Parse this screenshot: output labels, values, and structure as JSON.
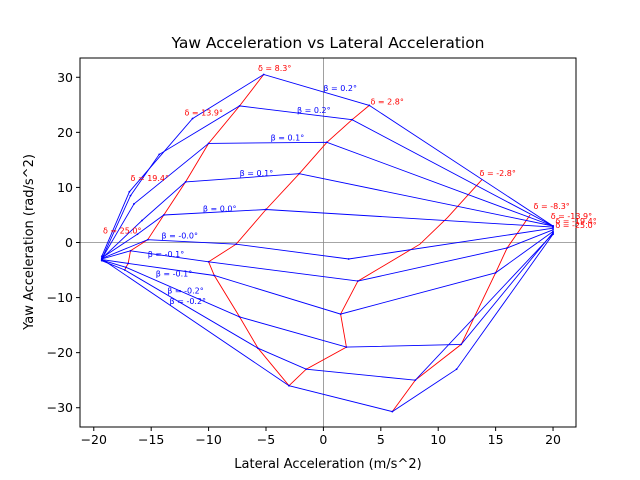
{
  "chart_data": {
    "type": "line",
    "title": "Yaw Acceleration vs Lateral Acceleration",
    "xlabel": "Lateral Acceleration (m/s^2)",
    "ylabel": "Yaw Acceleration (rad/s^2)",
    "xlim": [
      -21.2,
      22.0
    ],
    "ylim": [
      -33.5,
      33.5
    ],
    "xticks": [
      -20,
      -15,
      -10,
      -5,
      0,
      5,
      10,
      15,
      20
    ],
    "yticks": [
      -30,
      -20,
      -10,
      0,
      10,
      20,
      30
    ],
    "grid": false,
    "reference_lines": [
      "x=0",
      "y=0"
    ],
    "colors": {
      "beta_lines": "#0000ff",
      "delta_lines": "#ff0000"
    },
    "beta_series": [
      {
        "label": "β = 0.2°",
        "points": [
          [
            -19.3,
            -2.5
          ],
          [
            -16.9,
            9.2
          ],
          [
            -11.4,
            22.5
          ],
          [
            -5.2,
            30.5
          ],
          [
            4.0,
            24.9
          ],
          [
            20.0,
            3.0
          ]
        ]
      },
      {
        "label": "β = 0.2°",
        "points": [
          [
            -19.2,
            -2.5
          ],
          [
            -16.8,
            8.5
          ],
          [
            -14.3,
            16.0
          ],
          [
            -7.3,
            24.8
          ],
          [
            2.5,
            22.3
          ],
          [
            20.0,
            3.0
          ]
        ]
      },
      {
        "label": "β = 0.1°",
        "points": [
          [
            -19.2,
            -2.6
          ],
          [
            -16.5,
            7.0
          ],
          [
            -10.0,
            18.0
          ],
          [
            0.3,
            18.2
          ],
          [
            20.0,
            3.0
          ]
        ]
      },
      {
        "label": "β = 0.1°",
        "points": [
          [
            -19.2,
            -2.7
          ],
          [
            -15.8,
            4.0
          ],
          [
            -12.0,
            11.0
          ],
          [
            -2.1,
            12.5
          ],
          [
            20.0,
            3.0
          ]
        ]
      },
      {
        "label": "β = 0.0°",
        "points": [
          [
            -19.3,
            -2.8
          ],
          [
            -16.2,
            1.5
          ],
          [
            -13.9,
            5.0
          ],
          [
            -5.0,
            6.0
          ],
          [
            20.0,
            2.8
          ]
        ]
      },
      {
        "label": "β = -0.0°",
        "points": [
          [
            -19.3,
            -2.9
          ],
          [
            -15.3,
            0.5
          ],
          [
            -7.6,
            -0.3
          ],
          [
            2.2,
            -3.0
          ],
          [
            20.0,
            2.6
          ]
        ]
      },
      {
        "label": "β = -0.1°",
        "points": [
          [
            -19.3,
            -3.0
          ],
          [
            -16.8,
            -1.5
          ],
          [
            -10.0,
            -3.5
          ],
          [
            3.0,
            -7.0
          ],
          [
            16.0,
            -1.0
          ],
          [
            20.0,
            2.3
          ]
        ]
      },
      {
        "label": "β = -0.1°",
        "points": [
          [
            -19.3,
            -3.1
          ],
          [
            -17.0,
            -3.8
          ],
          [
            -9.5,
            -6.0
          ],
          [
            1.5,
            -13.0
          ],
          [
            15.0,
            -5.5
          ],
          [
            20.0,
            2.0
          ]
        ]
      },
      {
        "label": "β = -0.2°",
        "points": [
          [
            -19.3,
            -3.2
          ],
          [
            -17.2,
            -4.5
          ],
          [
            -7.3,
            -13.5
          ],
          [
            2.0,
            -19.0
          ],
          [
            12.0,
            -18.5
          ],
          [
            20.0,
            1.8
          ]
        ]
      },
      {
        "label": "β = -0.2°",
        "points": [
          [
            -19.3,
            -3.3
          ],
          [
            -17.3,
            -5.0
          ],
          [
            -5.7,
            -19.2
          ],
          [
            -1.5,
            -23.0
          ],
          [
            8.0,
            -25.0
          ],
          [
            20.0,
            1.6
          ]
        ]
      },
      {
        "label": "",
        "points": [
          [
            -19.3,
            -3.0
          ],
          [
            -3.0,
            -26.0
          ],
          [
            6.0,
            -30.7
          ],
          [
            11.6,
            -23.0
          ],
          [
            20.0,
            1.5
          ]
        ]
      }
    ],
    "delta_series": [
      {
        "label": "δ = 8.3°",
        "points": [
          [
            -5.2,
            30.5
          ],
          [
            -7.3,
            24.8
          ],
          [
            -10.0,
            18.0
          ],
          [
            -12.0,
            11.0
          ],
          [
            -13.9,
            5.0
          ],
          [
            -15.3,
            0.5
          ],
          [
            -16.8,
            -1.5
          ],
          [
            -17.0,
            -3.8
          ],
          [
            -17.2,
            -4.5
          ],
          [
            -17.3,
            -5.0
          ]
        ]
      },
      {
        "label": "δ = 2.8°",
        "points": [
          [
            4.0,
            24.9
          ],
          [
            2.5,
            22.3
          ],
          [
            0.3,
            18.2
          ],
          [
            -2.1,
            12.5
          ],
          [
            -5.0,
            6.0
          ],
          [
            -7.6,
            -0.3
          ],
          [
            -10.0,
            -3.5
          ],
          [
            -9.5,
            -6.0
          ],
          [
            -7.3,
            -13.5
          ],
          [
            -5.7,
            -19.2
          ],
          [
            -3.0,
            -26.0
          ]
        ]
      },
      {
        "label": "δ = -2.8°",
        "points": [
          [
            13.8,
            11.4
          ],
          [
            10.8,
            4.5
          ],
          [
            8.4,
            -0.3
          ],
          [
            3.0,
            -7.0
          ],
          [
            1.5,
            -13.0
          ],
          [
            2.0,
            -19.0
          ],
          [
            -1.5,
            -23.0
          ],
          [
            -3.0,
            -26.0
          ]
        ]
      },
      {
        "label": "δ = -8.3°",
        "points": [
          [
            18.0,
            5.0
          ],
          [
            16.0,
            -1.0
          ],
          [
            15.0,
            -5.5
          ],
          [
            12.0,
            -18.5
          ],
          [
            8.0,
            -25.0
          ],
          [
            6.0,
            -30.7
          ]
        ]
      }
    ],
    "delta_annotations": [
      {
        "text": "δ = 8.3°",
        "x": -5.7,
        "y": 31.1
      },
      {
        "text": "δ = 13.9°",
        "x": -12.1,
        "y": 23.1
      },
      {
        "text": "δ = 19.4°",
        "x": -16.8,
        "y": 11.2
      },
      {
        "text": "δ = 25.0°",
        "x": -19.2,
        "y": 1.6
      },
      {
        "text": "δ = 2.8°",
        "x": 4.1,
        "y": 25.1
      },
      {
        "text": "δ = -2.8°",
        "x": 13.6,
        "y": 12.1
      },
      {
        "text": "δ = -8.3°",
        "x": 18.3,
        "y": 6.1
      },
      {
        "text": "δ = -13.9°",
        "x": 19.8,
        "y": 4.3
      },
      {
        "text": "δ = -19.4°",
        "x": 20.2,
        "y": 3.4
      },
      {
        "text": "δ = -25.0°",
        "x": 20.2,
        "y": 2.6
      }
    ],
    "beta_annotations": [
      {
        "text": "β = 0.2°",
        "x": 0.0,
        "y": 27.5
      },
      {
        "text": "β = 0.2°",
        "x": -2.3,
        "y": 23.5
      },
      {
        "text": "β = 0.1°",
        "x": -4.6,
        "y": 18.5
      },
      {
        "text": "β = 0.1°",
        "x": -7.3,
        "y": 12.1
      },
      {
        "text": "β = 0.0°",
        "x": -10.5,
        "y": 5.6
      },
      {
        "text": "β = -0.0°",
        "x": -14.1,
        "y": 0.7
      },
      {
        "text": "β = -0.1°",
        "x": -15.3,
        "y": -2.6
      },
      {
        "text": "β = -0.1°",
        "x": -14.6,
        "y": -6.2
      },
      {
        "text": "β = -0.2°",
        "x": -13.6,
        "y": -9.3
      },
      {
        "text": "β = -0.2°",
        "x": -13.4,
        "y": -11.2
      }
    ]
  }
}
